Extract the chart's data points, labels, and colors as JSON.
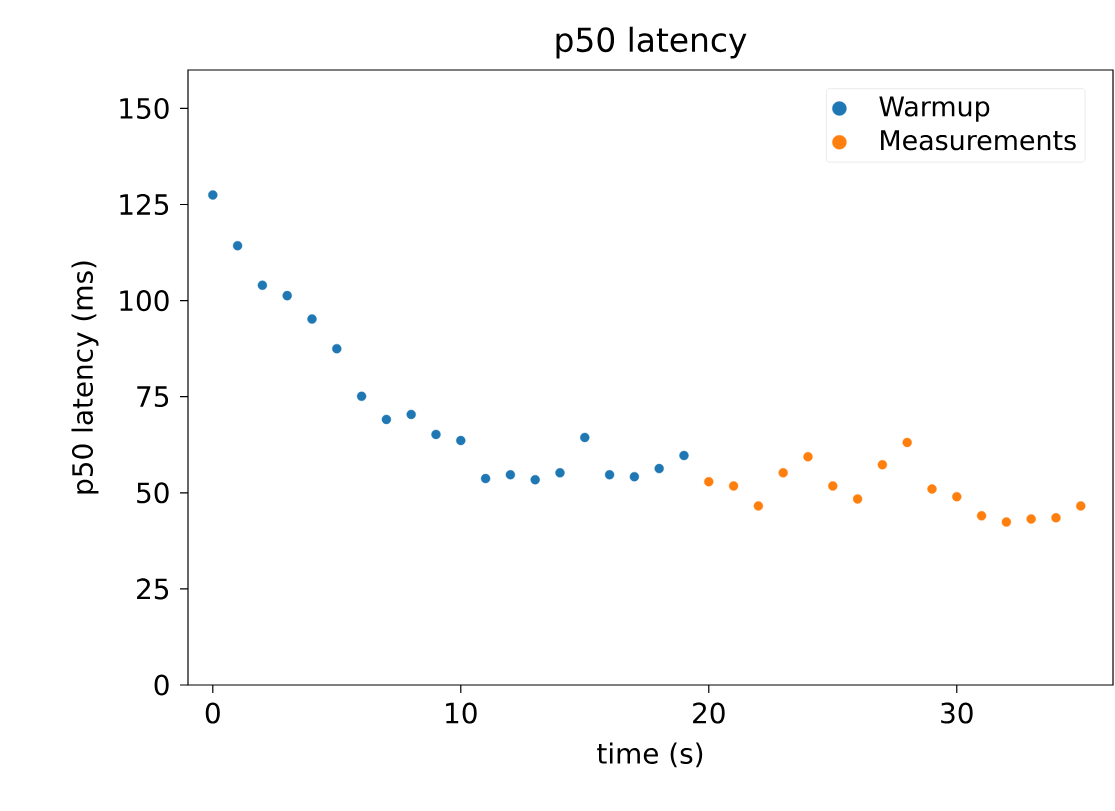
{
  "chart_data": {
    "type": "scatter",
    "title": "p50 latency",
    "xlabel": "time (s)",
    "ylabel": "p50 latency (ms)",
    "xlim": [
      -1,
      36.3
    ],
    "ylim": [
      0,
      160
    ],
    "xticks": [
      0,
      10,
      20,
      30
    ],
    "yticks": [
      0,
      25,
      50,
      75,
      100,
      125,
      150
    ],
    "grid": false,
    "legend": "top right",
    "series": [
      {
        "name": "Warmup",
        "color": "#1f77b4",
        "x": [
          0,
          1,
          2,
          3,
          4,
          5,
          6,
          7,
          8,
          9,
          10,
          11,
          12,
          13,
          14,
          15,
          16,
          17,
          18,
          19
        ],
        "values": [
          127.5,
          114.3,
          104,
          101.3,
          95.2,
          87.5,
          75.1,
          69.1,
          70.4,
          65.2,
          63.6,
          53.7,
          54.7,
          53.4,
          55.2,
          64.4,
          54.7,
          54.2,
          56.3,
          59.7
        ]
      },
      {
        "name": "Measurements",
        "color": "#ff7f0e",
        "x": [
          20,
          21,
          22,
          23,
          24,
          25,
          26,
          27,
          28,
          29,
          30,
          31,
          32,
          33,
          34,
          35
        ],
        "values": [
          52.9,
          51.8,
          46.6,
          55.2,
          59.4,
          51.8,
          48.4,
          57.3,
          63.1,
          51,
          49,
          44,
          42.4,
          43.2,
          43.5,
          46.6
        ]
      }
    ]
  }
}
